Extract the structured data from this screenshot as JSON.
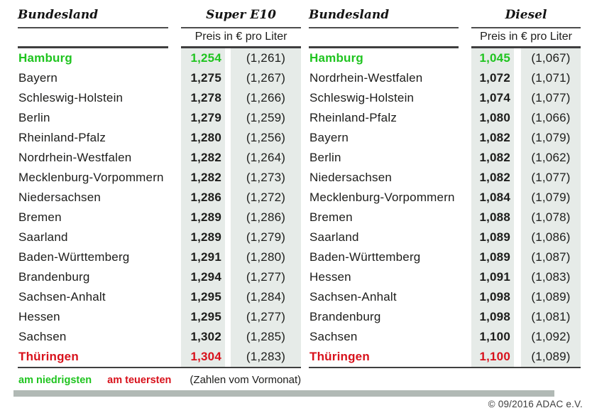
{
  "page": {
    "legend": {
      "lowest_label": "am niedrigsten",
      "highest_label": "am teuersten",
      "note": "(Zahlen vom Vormonat)"
    },
    "copyright": "© 09/2016 ADAC e.V."
  },
  "colors": {
    "lowest": "#1fc41f",
    "highest": "#d8111b",
    "value_column_bg": "#e6ebe8",
    "bottom_bar": "#b1b9b5",
    "rule_lines": "#3f3f3f"
  },
  "tables": [
    {
      "name_header": "Bundesland",
      "fuel_header": "Super E10",
      "unit_label": "Preis in € pro Liter",
      "rows": [
        {
          "land": "Hamburg",
          "price": "1,254",
          "prev": "(1,261)",
          "highlight": "lowest"
        },
        {
          "land": "Bayern",
          "price": "1,275",
          "prev": "(1,267)"
        },
        {
          "land": "Schleswig-Holstein",
          "price": "1,278",
          "prev": "(1,266)"
        },
        {
          "land": "Berlin",
          "price": "1,279",
          "prev": "(1,259)"
        },
        {
          "land": "Rheinland-Pfalz",
          "price": "1,280",
          "prev": "(1,256)"
        },
        {
          "land": "Nordrhein-Westfalen",
          "price": "1,282",
          "prev": "(1,264)"
        },
        {
          "land": "Mecklenburg-Vorpommern",
          "price": "1,282",
          "prev": "(1,273)"
        },
        {
          "land": "Niedersachsen",
          "price": "1,286",
          "prev": "(1,272)"
        },
        {
          "land": "Bremen",
          "price": "1,289",
          "prev": "(1,286)"
        },
        {
          "land": "Saarland",
          "price": "1,289",
          "prev": "(1,279)"
        },
        {
          "land": "Baden-Württemberg",
          "price": "1,291",
          "prev": "(1,280)"
        },
        {
          "land": "Brandenburg",
          "price": "1,294",
          "prev": "(1,277)"
        },
        {
          "land": "Sachsen-Anhalt",
          "price": "1,295",
          "prev": "(1,284)"
        },
        {
          "land": "Hessen",
          "price": "1,295",
          "prev": "(1,277)"
        },
        {
          "land": "Sachsen",
          "price": "1,302",
          "prev": "(1,285)"
        },
        {
          "land": "Thüringen",
          "price": "1,304",
          "prev": "(1,283)",
          "highlight": "highest"
        }
      ]
    },
    {
      "name_header": "Bundesland",
      "fuel_header": "Diesel",
      "unit_label": "Preis in € pro Liter",
      "rows": [
        {
          "land": "Hamburg",
          "price": "1,045",
          "prev": "(1,067)",
          "highlight": "lowest"
        },
        {
          "land": "Nordrhein-Westfalen",
          "price": "1,072",
          "prev": "(1,071)"
        },
        {
          "land": "Schleswig-Holstein",
          "price": "1,074",
          "prev": "(1,077)"
        },
        {
          "land": "Rheinland-Pfalz",
          "price": "1,080",
          "prev": "(1,066)"
        },
        {
          "land": "Bayern",
          "price": "1,082",
          "prev": "(1,079)"
        },
        {
          "land": "Berlin",
          "price": "1,082",
          "prev": "(1,062)"
        },
        {
          "land": "Niedersachsen",
          "price": "1,082",
          "prev": "(1,077)"
        },
        {
          "land": "Mecklenburg-Vorpommern",
          "price": "1,084",
          "prev": "(1,079)"
        },
        {
          "land": "Bremen",
          "price": "1,088",
          "prev": "(1,078)"
        },
        {
          "land": "Saarland",
          "price": "1,089",
          "prev": "(1,086)"
        },
        {
          "land": "Baden-Württemberg",
          "price": "1,089",
          "prev": "(1,087)"
        },
        {
          "land": "Hessen",
          "price": "1,091",
          "prev": "(1,083)"
        },
        {
          "land": "Sachsen-Anhalt",
          "price": "1,098",
          "prev": "(1,089)"
        },
        {
          "land": "Brandenburg",
          "price": "1,098",
          "prev": "(1,081)"
        },
        {
          "land": "Sachsen",
          "price": "1,100",
          "prev": "(1,092)"
        },
        {
          "land": "Thüringen",
          "price": "1,100",
          "prev": "(1,089)",
          "highlight": "highest"
        }
      ]
    }
  ],
  "chart_data": [
    {
      "type": "table",
      "title": "Super E10",
      "ylabel": "Preis in € pro Liter",
      "columns": [
        "Bundesland",
        "Preis in € pro Liter",
        "Vormonat"
      ],
      "rows": [
        [
          "Hamburg",
          1.254,
          1.261
        ],
        [
          "Bayern",
          1.275,
          1.267
        ],
        [
          "Schleswig-Holstein",
          1.278,
          1.266
        ],
        [
          "Berlin",
          1.279,
          1.259
        ],
        [
          "Rheinland-Pfalz",
          1.28,
          1.256
        ],
        [
          "Nordrhein-Westfalen",
          1.282,
          1.264
        ],
        [
          "Mecklenburg-Vorpommern",
          1.282,
          1.273
        ],
        [
          "Niedersachsen",
          1.286,
          1.272
        ],
        [
          "Bremen",
          1.289,
          1.286
        ],
        [
          "Saarland",
          1.289,
          1.279
        ],
        [
          "Baden-Württemberg",
          1.291,
          1.28
        ],
        [
          "Brandenburg",
          1.294,
          1.277
        ],
        [
          "Sachsen-Anhalt",
          1.295,
          1.284
        ],
        [
          "Hessen",
          1.295,
          1.277
        ],
        [
          "Sachsen",
          1.302,
          1.285
        ],
        [
          "Thüringen",
          1.304,
          1.283
        ]
      ],
      "annotations": [
        "am niedrigsten: Hamburg",
        "am teuersten: Thüringen",
        "(Zahlen vom Vormonat)"
      ]
    },
    {
      "type": "table",
      "title": "Diesel",
      "ylabel": "Preis in € pro Liter",
      "columns": [
        "Bundesland",
        "Preis in € pro Liter",
        "Vormonat"
      ],
      "rows": [
        [
          "Hamburg",
          1.045,
          1.067
        ],
        [
          "Nordrhein-Westfalen",
          1.072,
          1.071
        ],
        [
          "Schleswig-Holstein",
          1.074,
          1.077
        ],
        [
          "Rheinland-Pfalz",
          1.08,
          1.066
        ],
        [
          "Bayern",
          1.082,
          1.079
        ],
        [
          "Berlin",
          1.082,
          1.062
        ],
        [
          "Niedersachsen",
          1.082,
          1.077
        ],
        [
          "Mecklenburg-Vorpommern",
          1.084,
          1.079
        ],
        [
          "Bremen",
          1.088,
          1.078
        ],
        [
          "Saarland",
          1.089,
          1.086
        ],
        [
          "Baden-Württemberg",
          1.089,
          1.087
        ],
        [
          "Hessen",
          1.091,
          1.083
        ],
        [
          "Sachsen-Anhalt",
          1.098,
          1.089
        ],
        [
          "Brandenburg",
          1.098,
          1.081
        ],
        [
          "Sachsen",
          1.1,
          1.092
        ],
        [
          "Thüringen",
          1.1,
          1.089
        ]
      ],
      "annotations": [
        "am niedrigsten: Hamburg",
        "am teuersten: Thüringen",
        "(Zahlen vom Vormonat)"
      ]
    }
  ]
}
